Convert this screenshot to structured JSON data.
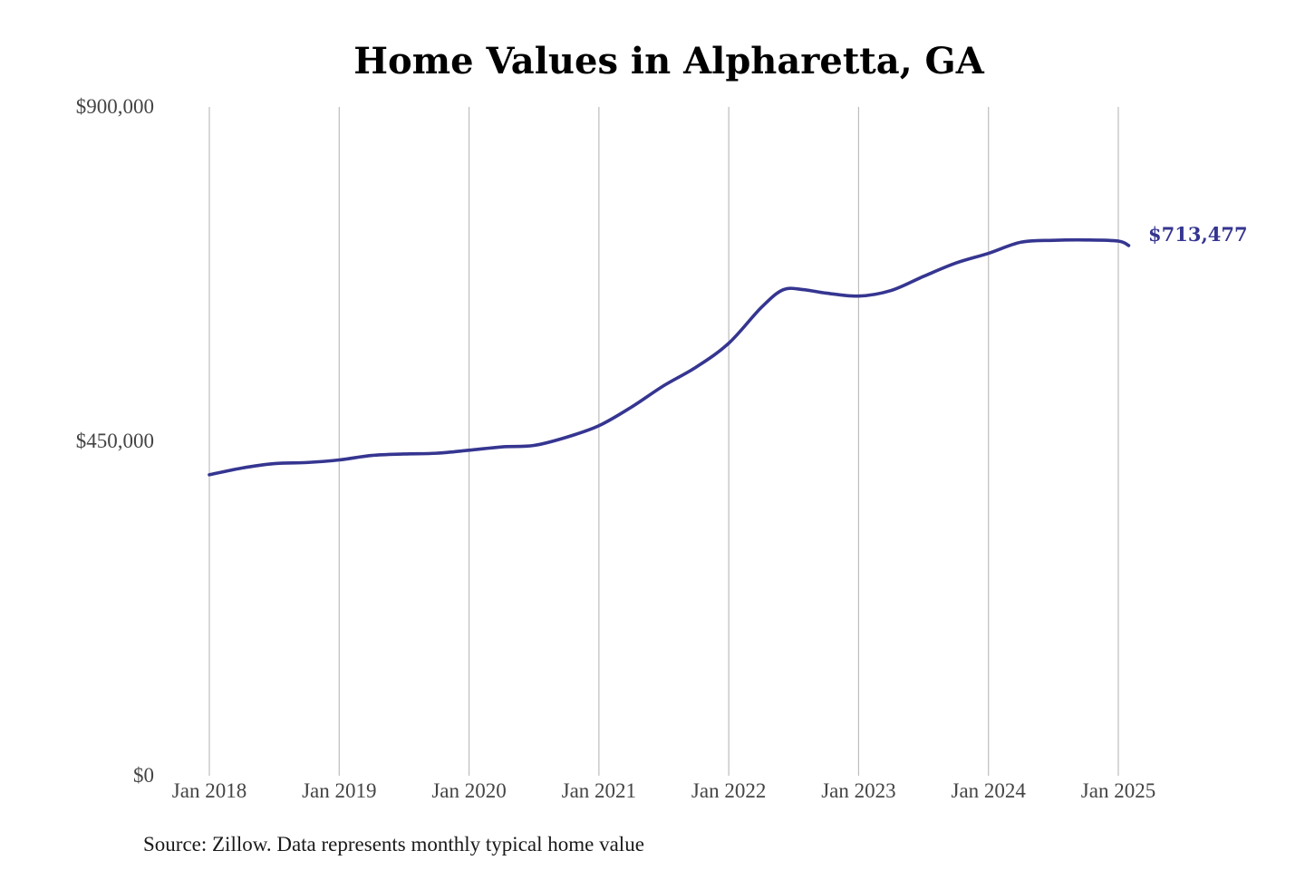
{
  "chart_data": {
    "type": "line",
    "title": "Home Values in Alpharetta, GA",
    "source": "Source: Zillow. Data represents monthly typical home value",
    "ylim": [
      0,
      900000
    ],
    "y_ticks": [
      {
        "value": 0,
        "label": "$0"
      },
      {
        "value": 450000,
        "label": "$450,000"
      },
      {
        "value": 900000,
        "label": "$900,000"
      }
    ],
    "x_ticks": [
      {
        "value": 2018.0,
        "label": "Jan 2018"
      },
      {
        "value": 2019.0,
        "label": "Jan 2019"
      },
      {
        "value": 2020.0,
        "label": "Jan 2020"
      },
      {
        "value": 2021.0,
        "label": "Jan 2021"
      },
      {
        "value": 2022.0,
        "label": "Jan 2022"
      },
      {
        "value": 2023.0,
        "label": "Jan 2023"
      },
      {
        "value": 2024.0,
        "label": "Jan 2024"
      },
      {
        "value": 2025.0,
        "label": "Jan 2025"
      }
    ],
    "xlim": [
      2018.0,
      2025.0
    ],
    "grid": {
      "vertical": true,
      "horizontal": false
    },
    "line_color": "#353591",
    "end_label": "$713,477",
    "series": [
      {
        "color": "#353591",
        "points": [
          {
            "x": 2018.0,
            "y": 405000
          },
          {
            "x": 2018.25,
            "y": 414000
          },
          {
            "x": 2018.5,
            "y": 420000
          },
          {
            "x": 2018.75,
            "y": 421500
          },
          {
            "x": 2019.0,
            "y": 425000
          },
          {
            "x": 2019.25,
            "y": 431000
          },
          {
            "x": 2019.5,
            "y": 433000
          },
          {
            "x": 2019.75,
            "y": 434000
          },
          {
            "x": 2020.0,
            "y": 438000
          },
          {
            "x": 2020.25,
            "y": 442500
          },
          {
            "x": 2020.5,
            "y": 444500
          },
          {
            "x": 2020.75,
            "y": 455500
          },
          {
            "x": 2021.0,
            "y": 471000
          },
          {
            "x": 2021.25,
            "y": 496000
          },
          {
            "x": 2021.5,
            "y": 525000
          },
          {
            "x": 2021.75,
            "y": 550000
          },
          {
            "x": 2022.0,
            "y": 582000
          },
          {
            "x": 2022.25,
            "y": 630000
          },
          {
            "x": 2022.42,
            "y": 654000
          },
          {
            "x": 2022.58,
            "y": 654000
          },
          {
            "x": 2022.75,
            "y": 649500
          },
          {
            "x": 2023.0,
            "y": 645500
          },
          {
            "x": 2023.25,
            "y": 653000
          },
          {
            "x": 2023.5,
            "y": 672000
          },
          {
            "x": 2023.75,
            "y": 690000
          },
          {
            "x": 2024.0,
            "y": 703000
          },
          {
            "x": 2024.25,
            "y": 718000
          },
          {
            "x": 2024.5,
            "y": 720500
          },
          {
            "x": 2024.75,
            "y": 721000
          },
          {
            "x": 2025.0,
            "y": 719500
          },
          {
            "x": 2025.08,
            "y": 713477
          }
        ]
      }
    ]
  }
}
